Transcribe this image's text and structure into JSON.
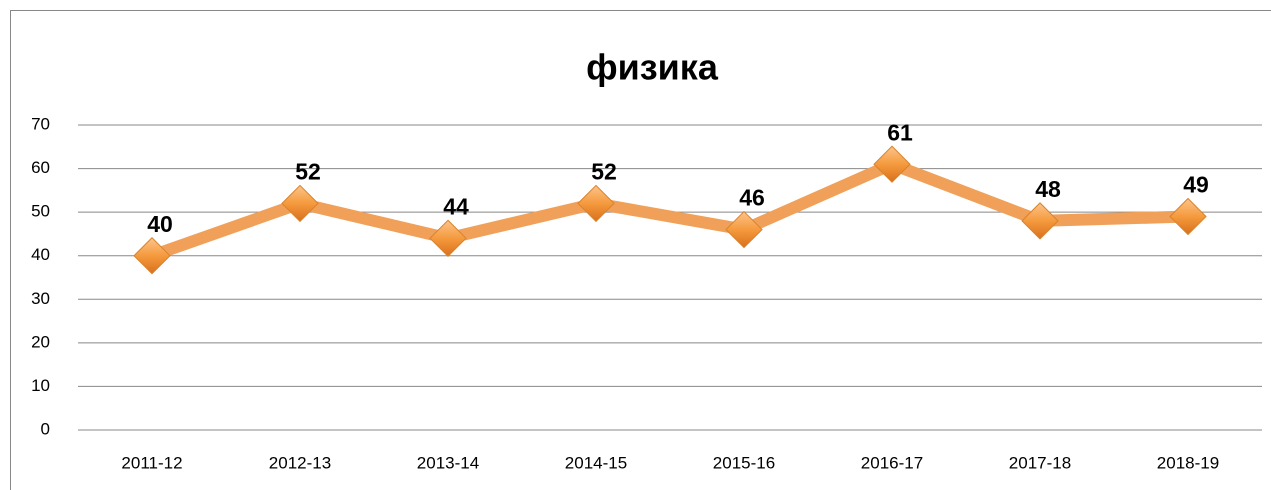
{
  "chart_data": {
    "type": "line",
    "title": "физика",
    "categories": [
      "2011-12",
      "2012-13",
      "2013-14",
      "2014-15",
      "2015-16",
      "2016-17",
      "2017-18",
      "2018-19"
    ],
    "values": [
      40,
      52,
      44,
      52,
      46,
      61,
      48,
      49
    ],
    "color": "#f0a058",
    "ylim": [
      0,
      70
    ],
    "yticks": [
      0,
      10,
      20,
      30,
      40,
      50,
      60,
      70
    ],
    "grid": true
  }
}
